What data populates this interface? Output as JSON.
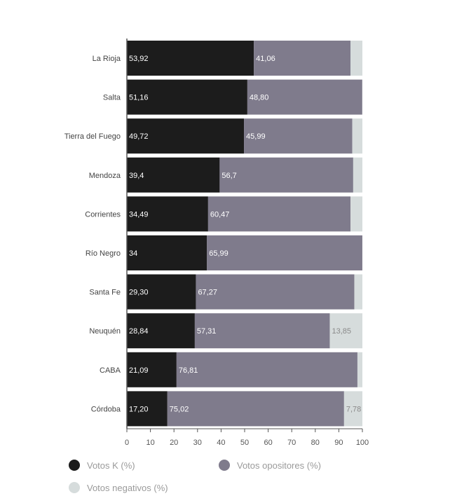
{
  "chart_data": {
    "type": "bar",
    "orientation": "horizontal",
    "stacked": true,
    "categories": [
      "La Rioja",
      "Salta",
      "Tierra del Fuego",
      "Mendoza",
      "Corrientes",
      "Río Negro",
      "Santa Fe",
      "Neuquén",
      "CABA",
      "Córdoba"
    ],
    "series": [
      {
        "name": "Votos K (%)",
        "color": "#1c1c1c",
        "values": [
          53.92,
          51.16,
          49.72,
          39.4,
          34.49,
          34,
          29.3,
          28.84,
          21.09,
          17.2
        ],
        "labels": [
          "53,92",
          "51,16",
          "49,72",
          "39,4",
          "34,49",
          "34",
          "29,30",
          "28,84",
          "21,09",
          "17,20"
        ]
      },
      {
        "name": "Votos opositores (%)",
        "color": "#7f7b8c",
        "values": [
          41.06,
          48.8,
          45.99,
          56.7,
          60.47,
          65.99,
          67.27,
          57.31,
          76.81,
          75.02
        ],
        "labels": [
          "41,06",
          "48,80",
          "45,99",
          "56,7",
          "60,47",
          "65,99",
          "67,27",
          "57,31",
          "76,81",
          "75,02"
        ]
      },
      {
        "name": "Votos negativos (%)",
        "color": "#d6dcdc",
        "values": [
          5.02,
          0.04,
          4.29,
          3.9,
          5.04,
          0.01,
          3.43,
          13.85,
          2.1,
          7.78
        ],
        "labels": [
          "",
          "",
          "",
          "",
          "",
          "",
          "",
          "13,85",
          "",
          "7,78"
        ]
      }
    ],
    "xticks": [
      0,
      10,
      20,
      30,
      40,
      50,
      60,
      70,
      80,
      90,
      100
    ],
    "xlim": [
      0,
      100
    ],
    "grid": false,
    "legend_position": "bottom"
  }
}
